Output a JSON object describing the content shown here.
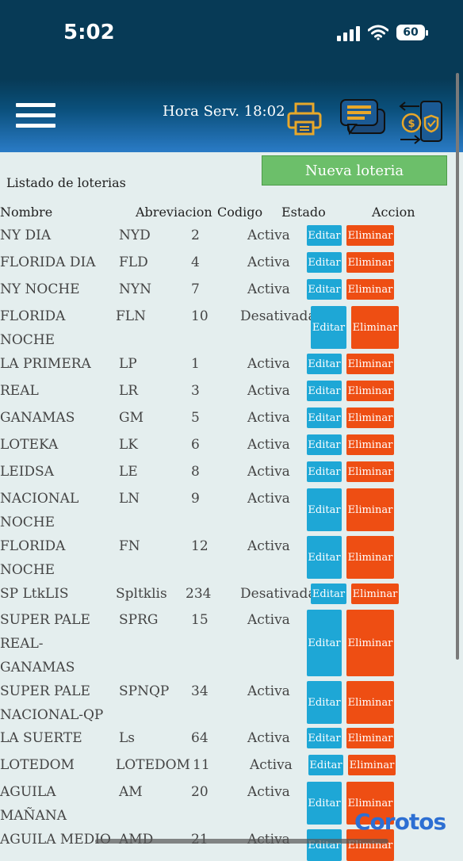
{
  "status_bar": {
    "time": "5:02",
    "battery": "60"
  },
  "header": {
    "server_time": "Hora Serv. 18:02"
  },
  "page": {
    "title": "Listado de loterias",
    "new_button": "Nueva loteria"
  },
  "table": {
    "columns": [
      "Nombre",
      "Abreviacion",
      "Codigo",
      "Estado",
      "Accion"
    ],
    "edit_label": "Editar",
    "delete_label": "Eliminar",
    "rows": [
      {
        "name": [
          "NY DIA"
        ],
        "abbr": "NYD",
        "code": "2",
        "status": "Activa"
      },
      {
        "name": [
          "FLORIDA DIA"
        ],
        "abbr": "FLD",
        "code": "4",
        "status": "Activa"
      },
      {
        "name": [
          "NY NOCHE"
        ],
        "abbr": "NYN",
        "code": "7",
        "status": "Activa"
      },
      {
        "name": [
          "FLORIDA",
          "NOCHE"
        ],
        "abbr": "FLN",
        "code": "10",
        "status": "Desativada"
      },
      {
        "name": [
          "LA PRIMERA"
        ],
        "abbr": "LP",
        "code": "1",
        "status": "Activa"
      },
      {
        "name": [
          "REAL"
        ],
        "abbr": "LR",
        "code": "3",
        "status": "Activa"
      },
      {
        "name": [
          "GANAMAS"
        ],
        "abbr": "GM",
        "code": "5",
        "status": "Activa"
      },
      {
        "name": [
          "LOTEKA"
        ],
        "abbr": "LK",
        "code": "6",
        "status": "Activa"
      },
      {
        "name": [
          "LEIDSA"
        ],
        "abbr": "LE",
        "code": "8",
        "status": "Activa"
      },
      {
        "name": [
          "NACIONAL",
          "NOCHE"
        ],
        "abbr": "LN",
        "code": "9",
        "status": "Activa"
      },
      {
        "name": [
          "FLORIDA",
          "NOCHE"
        ],
        "abbr": "FN",
        "code": "12",
        "status": "Activa"
      },
      {
        "name": [
          "SP LtkLIS"
        ],
        "abbr": "Spltklis",
        "code": "234",
        "status": "Desativada"
      },
      {
        "name": [
          "SUPER PALE",
          "REAL-",
          "GANAMAS"
        ],
        "abbr": "SPRG",
        "code": "15",
        "status": "Activa"
      },
      {
        "name": [
          "SUPER PALE",
          "NACIONAL-QP"
        ],
        "abbr": "SPNQP",
        "code": "34",
        "status": "Activa"
      },
      {
        "name": [
          "LA SUERTE"
        ],
        "abbr": "Ls",
        "code": "64",
        "status": "Activa"
      },
      {
        "name": [
          "LOTEDOM"
        ],
        "abbr": "LOTEDOM",
        "code": "11",
        "status": "Activa"
      },
      {
        "name": [
          "AGUILA",
          "MAÑANA"
        ],
        "abbr": "AM",
        "code": "20",
        "status": "Activa"
      },
      {
        "name": [
          "AGUILA MEDIO"
        ],
        "abbr": "AMD",
        "code": "21",
        "status": "Activa"
      }
    ]
  },
  "watermark": "Corotos"
}
